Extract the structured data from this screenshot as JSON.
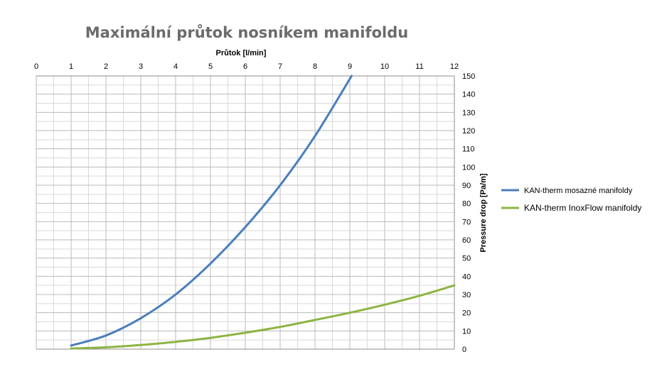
{
  "chart_data": {
    "type": "line",
    "title": "Maximální průtok nosníkem manifoldu",
    "xlabel": "Průtok  [l/min]",
    "ylabel": "Pressure drop [Pa/m]",
    "x_axis_position": "top",
    "y_axis_position": "right",
    "xlim": [
      0,
      12
    ],
    "ylim": [
      0,
      150
    ],
    "x_ticks": [
      "0",
      "1",
      "2",
      "3",
      "4",
      "5",
      "6",
      "7",
      "8",
      "9",
      "10",
      "11",
      "12"
    ],
    "y_ticks": [
      "0",
      "10",
      "20",
      "30",
      "40",
      "50",
      "60",
      "70",
      "80",
      "90",
      "100",
      "110",
      "120",
      "130",
      "140",
      "150"
    ],
    "grid": true,
    "legend_position": "right",
    "series": [
      {
        "name": "KAN-therm mosazné manifoldy",
        "color": "#4a7ebb",
        "x": [
          1,
          2,
          3,
          4,
          5,
          6,
          7,
          8,
          9.05
        ],
        "y": [
          2,
          7.5,
          17,
          30,
          47,
          67,
          90,
          117,
          150
        ]
      },
      {
        "name": "KAN-therm InoxFlow manifoldy",
        "color": "#8db443",
        "x": [
          1,
          2,
          3,
          4,
          5,
          6,
          7,
          8,
          9,
          10,
          11,
          12
        ],
        "y": [
          0.3,
          1,
          2.3,
          4,
          6.2,
          9,
          12.2,
          16,
          20,
          24.4,
          29.3,
          35
        ]
      }
    ]
  }
}
